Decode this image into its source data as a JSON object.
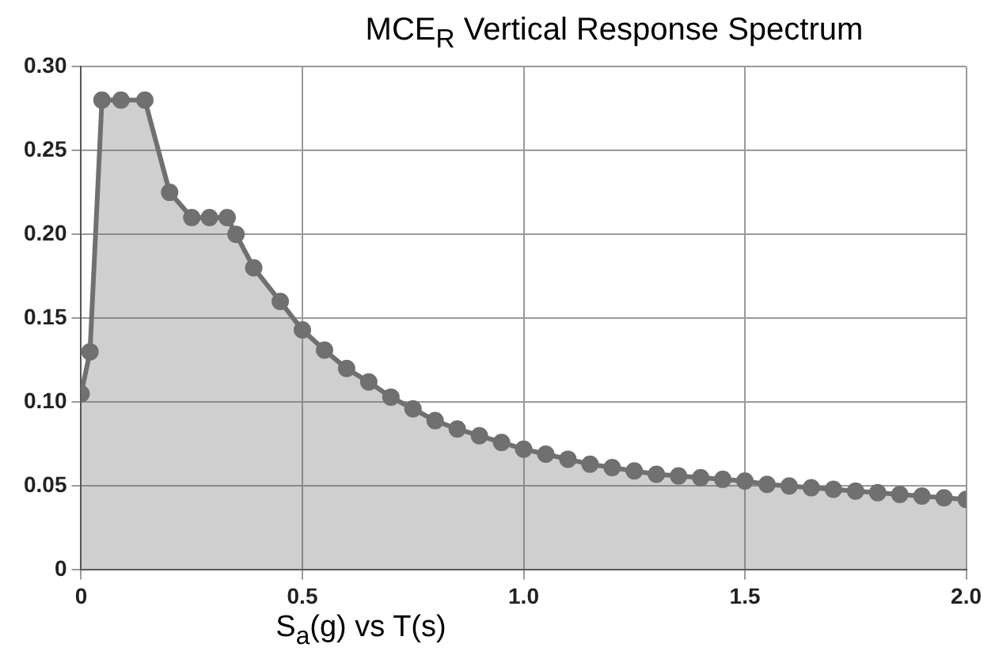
{
  "chart_data": {
    "type": "area",
    "title": "MCE$_{R}$ Vertical Response Spectrum",
    "xlabel": "S$_{a}$(g) vs T(s)",
    "series": [
      {
        "color": "#707070",
        "x": [
          0,
          0.02,
          0.047,
          0.09,
          0.144,
          0.2,
          0.25,
          0.29,
          0.33,
          0.35,
          0.39,
          0.45,
          0.5,
          0.55,
          0.6,
          0.65,
          0.7,
          0.75,
          0.8,
          0.85,
          0.9,
          0.95,
          1.0,
          1.05,
          1.1,
          1.15,
          1.2,
          1.25,
          1.3,
          1.35,
          1.4,
          1.45,
          1.5,
          1.55,
          1.6,
          1.65,
          1.7,
          1.75,
          1.8,
          1.85,
          1.9,
          1.95,
          2.0
        ],
        "values": [
          0.105,
          0.13,
          0.28,
          0.28,
          0.28,
          0.225,
          0.21,
          0.21,
          0.21,
          0.2,
          0.18,
          0.16,
          0.143,
          0.131,
          0.12,
          0.112,
          0.103,
          0.096,
          0.089,
          0.084,
          0.08,
          0.076,
          0.072,
          0.069,
          0.066,
          0.063,
          0.061,
          0.059,
          0.057,
          0.056,
          0.055,
          0.054,
          0.053,
          0.051,
          0.05,
          0.049,
          0.048,
          0.047,
          0.046,
          0.045,
          0.044,
          0.043,
          0.042
        ]
      }
    ],
    "xlim": [
      0,
      2
    ],
    "xticks": [
      0,
      0.5,
      {
        "value": 1,
        "label": "1.0"
      },
      1.5,
      {
        "value": 2,
        "label": "2.0"
      }
    ],
    "ylim": [
      0,
      0.3
    ],
    "yticks": [
      0,
      0.05,
      {
        "value": 0.1,
        "label": "0.10"
      },
      0.15,
      {
        "value": 0.2,
        "label": "0.20"
      },
      0.25,
      {
        "value": 0.3,
        "label": "0.30"
      }
    ],
    "grid": true,
    "marker": "circle",
    "line_style": "solid",
    "legend": false
  }
}
